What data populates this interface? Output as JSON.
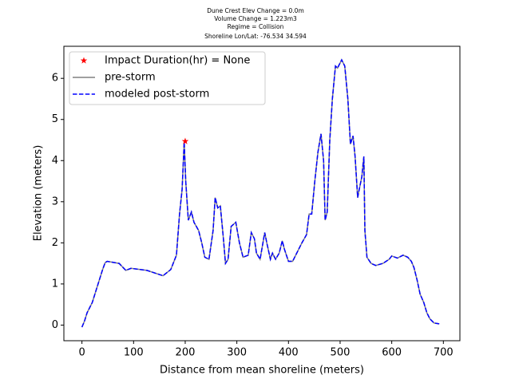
{
  "chart_data": {
    "type": "line",
    "title": [
      "Dune Crest Elev Change = 0.0m",
      "Volume Change = 1.223m3",
      "Regime = Collision",
      "Shoreline Lon/Lat: -76.534 34.594"
    ],
    "xlabel": "Distance from mean shoreline (meters)",
    "ylabel": "Elevation (meters)",
    "xlim": [
      -35,
      732
    ],
    "ylim": [
      -0.38,
      6.78
    ],
    "xticks": [
      0,
      100,
      200,
      300,
      400,
      500,
      600,
      700
    ],
    "yticks": [
      0,
      1,
      2,
      3,
      4,
      5,
      6
    ],
    "legend": "upper left",
    "x": [
      0,
      5,
      10,
      20,
      30,
      40,
      45,
      49,
      72,
      85,
      95,
      126,
      157,
      172,
      183,
      189,
      194,
      198,
      201,
      206,
      212,
      217,
      226,
      232,
      238,
      246,
      254,
      258,
      263,
      268,
      274,
      278,
      283,
      289,
      298,
      305,
      312,
      322,
      328,
      334,
      338,
      345,
      354,
      358,
      365,
      369,
      375,
      382,
      388,
      392,
      400,
      408,
      418,
      426,
      435,
      440,
      445,
      451,
      457,
      463,
      468,
      471,
      475,
      480,
      485,
      491,
      495,
      503,
      509,
      515,
      520,
      525,
      529,
      534,
      537,
      542,
      546,
      548,
      552,
      560,
      569,
      583,
      595,
      600,
      611,
      622,
      631,
      638,
      643,
      649,
      655,
      662,
      668,
      674,
      682,
      692
    ],
    "series": [
      {
        "name": "pre-storm",
        "color": "#808080",
        "style": "solid",
        "values": [
          -0.05,
          0.1,
          0.3,
          0.55,
          0.95,
          1.35,
          1.52,
          1.55,
          1.5,
          1.33,
          1.38,
          1.33,
          1.2,
          1.35,
          1.7,
          2.7,
          3.3,
          4.45,
          3.5,
          2.55,
          2.75,
          2.5,
          2.3,
          2.0,
          1.65,
          1.6,
          2.3,
          3.1,
          2.85,
          2.9,
          2.1,
          1.5,
          1.6,
          2.4,
          2.5,
          2.0,
          1.65,
          1.7,
          2.25,
          2.1,
          1.75,
          1.6,
          2.25,
          2.0,
          1.6,
          1.75,
          1.6,
          1.75,
          2.05,
          1.85,
          1.55,
          1.55,
          1.8,
          2.0,
          2.2,
          2.7,
          2.7,
          3.5,
          4.2,
          4.65,
          4.0,
          2.55,
          2.75,
          4.5,
          5.5,
          6.3,
          6.25,
          6.45,
          6.3,
          5.5,
          4.4,
          4.6,
          4.1,
          3.1,
          3.3,
          3.6,
          4.1,
          2.3,
          1.65,
          1.5,
          1.45,
          1.5,
          1.6,
          1.68,
          1.63,
          1.7,
          1.65,
          1.55,
          1.4,
          1.1,
          0.75,
          0.55,
          0.3,
          0.15,
          0.05,
          0.03
        ]
      },
      {
        "name": "modeled post-storm",
        "color": "#0000ff",
        "style": "dashed",
        "values": [
          -0.05,
          0.1,
          0.3,
          0.55,
          0.95,
          1.35,
          1.52,
          1.55,
          1.5,
          1.33,
          1.38,
          1.33,
          1.2,
          1.35,
          1.7,
          2.7,
          3.3,
          4.45,
          3.5,
          2.55,
          2.75,
          2.5,
          2.3,
          2.0,
          1.65,
          1.6,
          2.3,
          3.1,
          2.85,
          2.9,
          2.1,
          1.5,
          1.6,
          2.4,
          2.5,
          2.0,
          1.65,
          1.7,
          2.25,
          2.1,
          1.75,
          1.6,
          2.25,
          2.0,
          1.6,
          1.75,
          1.6,
          1.75,
          2.05,
          1.85,
          1.55,
          1.55,
          1.8,
          2.0,
          2.2,
          2.7,
          2.7,
          3.5,
          4.2,
          4.65,
          4.0,
          2.55,
          2.75,
          4.5,
          5.5,
          6.3,
          6.25,
          6.45,
          6.3,
          5.5,
          4.4,
          4.6,
          4.1,
          3.1,
          3.3,
          3.6,
          4.1,
          2.3,
          1.65,
          1.5,
          1.45,
          1.5,
          1.6,
          1.68,
          1.63,
          1.7,
          1.65,
          1.55,
          1.4,
          1.1,
          0.75,
          0.55,
          0.3,
          0.15,
          0.05,
          0.03
        ]
      }
    ],
    "points": [
      {
        "name": "Impact Duration(hr) = None",
        "color": "#ff0000",
        "marker": "star",
        "x": [
          200
        ],
        "y": [
          4.47
        ]
      }
    ]
  }
}
